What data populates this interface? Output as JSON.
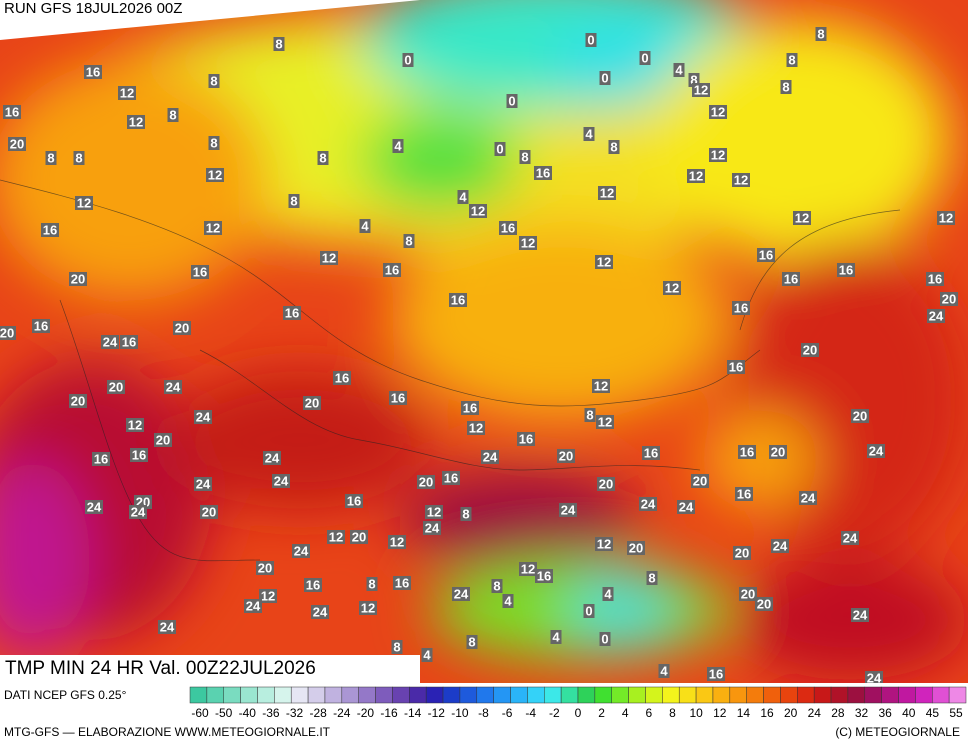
{
  "header": {
    "run": "RUN GFS 18JUL2026 00Z"
  },
  "footer": {
    "product": "TMP MIN 24 HR Val. 00Z22JUL2026",
    "source": "DATI NCEP GFS 0.25°",
    "credit": "MTG-GFS — ELABORAZIONE WWW.METEOGIORNALE.IT",
    "copyright": "(C) METEOGIORNALE"
  },
  "scale": {
    "ticks": [
      -60,
      -50,
      -40,
      -36,
      -32,
      -28,
      -24,
      -20,
      -16,
      -14,
      -12,
      -10,
      -8,
      -6,
      -4,
      -2,
      0,
      2,
      4,
      6,
      8,
      10,
      12,
      14,
      16,
      20,
      24,
      28,
      32,
      36,
      40,
      45,
      55
    ],
    "colors": [
      "#3cc8a0",
      "#5ad2b0",
      "#7adcc0",
      "#9ae6d0",
      "#b8eedf",
      "#d6f4ec",
      "#e6e6f4",
      "#d4cdea",
      "#c0b2e0",
      "#aa96d4",
      "#9478c8",
      "#7e5cbc",
      "#6842b0",
      "#4a2aa8",
      "#2a22b4",
      "#1c3cc8",
      "#1e5adc",
      "#2078ec",
      "#2496f4",
      "#2ab4f8",
      "#34d2f8",
      "#3ce8e8",
      "#34e0a0",
      "#2ed25a",
      "#40e030",
      "#74ea28",
      "#a8f020",
      "#d4f41c",
      "#f4f41c",
      "#f8e018",
      "#fac814",
      "#fab010",
      "#f8960e",
      "#f47c0c",
      "#f0600c",
      "#e8440e",
      "#dc2a12",
      "#c81818",
      "#b01228",
      "#9c1040",
      "#a01060",
      "#b01480",
      "#c018a0",
      "#d024bc",
      "#e050d4",
      "#ee88e6"
    ]
  },
  "map": {
    "labels": [
      8,
      16,
      8,
      0,
      0,
      0,
      4,
      0,
      8,
      8,
      8,
      8,
      12,
      12,
      16,
      12,
      8,
      0,
      12,
      20,
      8,
      8,
      8,
      4,
      0,
      8,
      8,
      4,
      12,
      8,
      12,
      16,
      12,
      12,
      12,
      8,
      4,
      12,
      12,
      12,
      12,
      16,
      12,
      4,
      16,
      8,
      12,
      12,
      16,
      12,
      16,
      16,
      20,
      16,
      16,
      16,
      12,
      16,
      20,
      16,
      16,
      24,
      20,
      16,
      20,
      24,
      16,
      20,
      16,
      16,
      12,
      20,
      24,
      16,
      20,
      20,
      16,
      8,
      12,
      20,
      24,
      12,
      12,
      16,
      20,
      20,
      16,
      16,
      20,
      24,
      16,
      16,
      24,
      24,
      16,
      20,
      24,
      24,
      20,
      20,
      16,
      24,
      24,
      20,
      24,
      16,
      24,
      24,
      20,
      12,
      8,
      24,
      24,
      24,
      12,
      20,
      12,
      12,
      20,
      24,
      20,
      24,
      20,
      12,
      16,
      8,
      8,
      16,
      16,
      24,
      8,
      4,
      12,
      4,
      20,
      20,
      24,
      12,
      24,
      0,
      24,
      24,
      8,
      4,
      0,
      8,
      4,
      4,
      16,
      24
    ]
  }
}
